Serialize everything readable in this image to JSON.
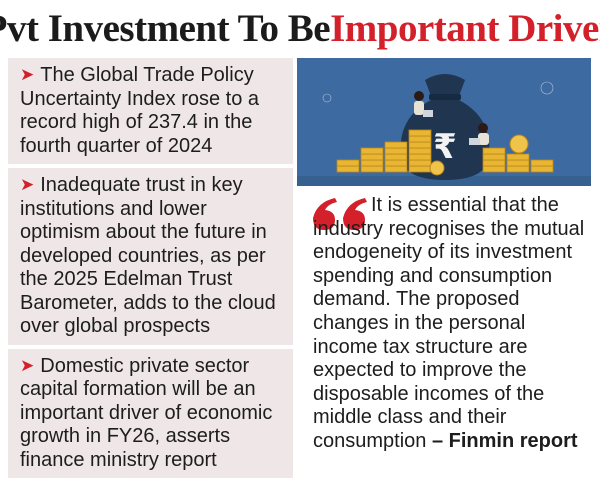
{
  "headline": {
    "prefix": "‘Pvt Investment To Be ",
    "highlight": "Important Driver’"
  },
  "bullets": [
    {
      "text": "The Global Trade Policy Uncertainty Index rose to a record high of 237.4 in the fourth quarter of 2024"
    },
    {
      "text": "Inadequate trust in key institutions and lower optimism about the future in developed countries, as per the 2025 Edelman Trust Barometer, adds to the cloud over global prospects"
    },
    {
      "text": "Domestic private sector capital formation will be an important driver of economic growth in FY26, asserts finance ministry report"
    }
  ],
  "bullet_icon": "red-arrow-icon",
  "illustration": {
    "icon": "rupee-money-bag-with-coin-stacks",
    "symbol": "₹"
  },
  "quote": {
    "icon": "open-quote-icon",
    "text": "It is essential that the industry recognises the mutual endogeneity of its investment spending and consumption demand. The proposed changes in the personal income tax structure are expected to improve the disposable incomes of the middle class and their consumption",
    "dash": " – ",
    "source": "Finmin report"
  },
  "colors": {
    "accent": "#d3202a",
    "panel": "#efe7e7",
    "illustration_bg": "#3e6aa2",
    "coin": "#e8b633"
  }
}
